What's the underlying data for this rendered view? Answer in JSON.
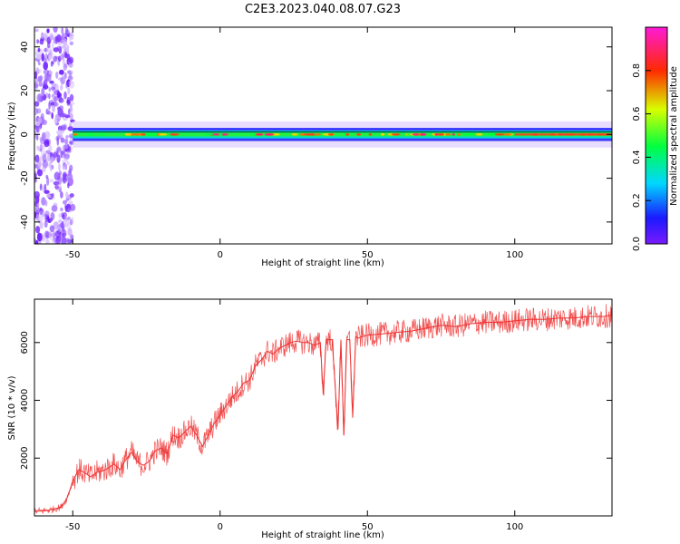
{
  "figure": {
    "title": "C2E3.2023.040.08.07.G23"
  },
  "chart_data": [
    {
      "type": "heatmap",
      "panel": "top",
      "xlabel": "Height of straight line (km)",
      "ylabel": "Frequency (Hz)",
      "xlim": [
        -63,
        133
      ],
      "ylim": [
        -50,
        49
      ],
      "x_ticks": [
        -50,
        0,
        50,
        100
      ],
      "y_ticks": [
        -40,
        -20,
        0,
        20,
        40
      ],
      "colorbar": {
        "label": "Normalized spectral amplitude",
        "range": [
          0,
          1
        ],
        "ticks": [
          0.0,
          0.2,
          0.4,
          0.6,
          0.8
        ],
        "colormap": "rainbow (purple → blue → cyan → green → yellow → red → magenta)"
      },
      "features": {
        "noise_region_x": [
          -63,
          -50
        ],
        "signal_band_center_hz": 0,
        "signal_band_halfwidth_hz": 3,
        "signal_x_range": [
          -50,
          133
        ]
      }
    },
    {
      "type": "line",
      "panel": "bottom",
      "xlabel": "Height of straight line (km)",
      "ylabel": "SNR (10 * v/v)",
      "xlim": [
        -63,
        133
      ],
      "ylim": [
        0,
        7500
      ],
      "x_ticks": [
        -50,
        0,
        50,
        100
      ],
      "y_ticks": [
        2000,
        4000,
        6000
      ],
      "series": [
        {
          "color": "#ee3333",
          "x": [
            -63,
            -58,
            -54,
            -52,
            -50,
            -48,
            -46,
            -44,
            -42,
            -40,
            -38,
            -36,
            -34,
            -32,
            -30,
            -28,
            -26,
            -24,
            -22,
            -20,
            -18,
            -16,
            -14,
            -12,
            -10,
            -8,
            -6,
            -4,
            -2,
            0,
            2,
            4,
            6,
            8,
            10,
            12,
            14,
            16,
            18,
            20,
            22,
            24,
            26,
            28,
            30,
            32,
            34,
            35,
            36,
            38,
            40,
            41,
            42,
            43,
            44,
            45,
            46,
            47,
            48,
            50,
            55,
            60,
            65,
            70,
            75,
            80,
            85,
            90,
            95,
            100,
            105,
            110,
            115,
            120,
            125,
            130,
            133
          ],
          "y": [
            150,
            200,
            300,
            600,
            1200,
            1600,
            1500,
            1350,
            1500,
            1550,
            1650,
            1800,
            1600,
            1950,
            2200,
            1850,
            1750,
            1900,
            2250,
            2350,
            2150,
            2800,
            2700,
            2900,
            3100,
            2800,
            2400,
            2800,
            3200,
            3500,
            3800,
            4100,
            4300,
            4600,
            4700,
            5200,
            5400,
            5700,
            5600,
            5800,
            5900,
            6000,
            6050,
            6000,
            6000,
            5900,
            6000,
            4200,
            6100,
            6100,
            3000,
            6100,
            2800,
            6100,
            6100,
            3400,
            6200,
            6150,
            6200,
            6250,
            6300,
            6350,
            6400,
            6500,
            6600,
            6550,
            6650,
            6700,
            6700,
            6750,
            6800,
            6800,
            6850,
            6850,
            6900,
            6900,
            6950
          ]
        }
      ]
    }
  ]
}
